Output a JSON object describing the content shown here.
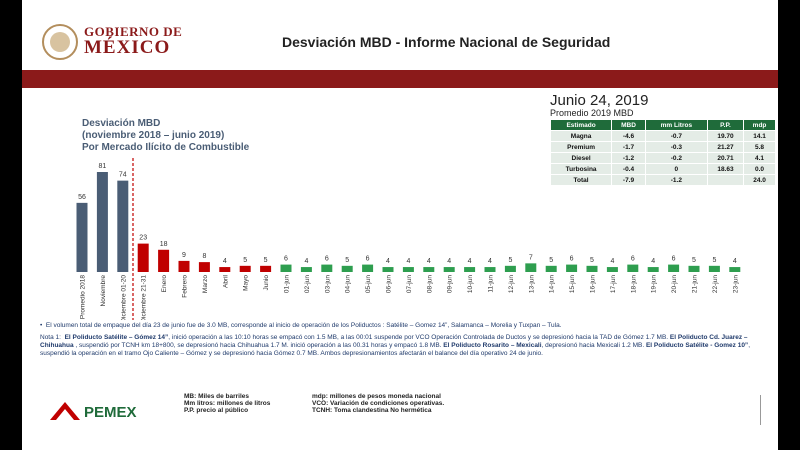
{
  "header": {
    "logo_line1": "GOBIERNO DE",
    "logo_line2": "MÉXICO",
    "title": "Desviación MBD - Informe Nacional de Seguridad"
  },
  "chart_data": {
    "type": "bar",
    "title_lines": [
      "Desviación MBD",
      "(noviembre 2018 – junio 2019)",
      "Por Mercado Ilícito de Combustible"
    ],
    "categories": [
      "Promedio 2018",
      "Noviembre",
      "Diciembre 01-20",
      "Diciembre 21-31",
      "Enero",
      "Febrero",
      "Marzo",
      "Abril",
      "Mayo",
      "Junio",
      "01-jun",
      "02-jun",
      "03-jun",
      "04-jun",
      "05-jun",
      "06-jun",
      "07-jun",
      "08-jun",
      "09-jun",
      "10-jun",
      "11-jun",
      "12-jun",
      "13-jun",
      "14-jun",
      "15-jun",
      "16-jun",
      "17-jun",
      "18-jun",
      "19-jun",
      "20-jun",
      "21-jun",
      "22-jun",
      "23-jun"
    ],
    "values": [
      56,
      81,
      74,
      23,
      18,
      9,
      8,
      4,
      5,
      5,
      6,
      4,
      6,
      5,
      6,
      4,
      4,
      4,
      4,
      4,
      4,
      5,
      7,
      5,
      6,
      5,
      4,
      6,
      4,
      6,
      5,
      5,
      4
    ],
    "colors": [
      "#4a5d75",
      "#4a5d75",
      "#4a5d75",
      "#c00000",
      "#c00000",
      "#c00000",
      "#c00000",
      "#c00000",
      "#c00000",
      "#c00000",
      "#2e9e4f",
      "#2e9e4f",
      "#2e9e4f",
      "#2e9e4f",
      "#2e9e4f",
      "#2e9e4f",
      "#2e9e4f",
      "#2e9e4f",
      "#2e9e4f",
      "#2e9e4f",
      "#2e9e4f",
      "#2e9e4f",
      "#2e9e4f",
      "#2e9e4f",
      "#2e9e4f",
      "#2e9e4f",
      "#2e9e4f",
      "#2e9e4f",
      "#2e9e4f",
      "#2e9e4f",
      "#2e9e4f",
      "#2e9e4f",
      "#2e9e4f"
    ]
  },
  "summary": {
    "date": "Junio 24, 2019",
    "subtitle": "Promedio 2019 MBD",
    "table": {
      "columns": [
        "Estimado",
        "MBD",
        "mm Litros",
        "P.P.",
        "mdp"
      ],
      "rows": [
        [
          "Magna",
          "-4.6",
          "-0.7",
          "19.70",
          "14.1"
        ],
        [
          "Premium",
          "-1.7",
          "-0.3",
          "21.27",
          "5.8"
        ],
        [
          "Diesel",
          "-1.2",
          "-0.2",
          "20.71",
          "4.1"
        ],
        [
          "Turbosina",
          "-0.4",
          "0",
          "18.63",
          "0.0"
        ],
        [
          "Total",
          "-7.9",
          "-1.2",
          null,
          "24.0"
        ]
      ]
    }
  },
  "notes": {
    "bullet": "El volumen total de empaque del día 23 de junio fue de 3.0 MB, corresponde al inicio de operación de los Poliductos : Satélite – Gomez 14”, Salamanca – Morelia y Tuxpan – Tula.",
    "note1": {
      "label": "Nota 1:",
      "parts": [
        {
          "text": "El Poliducto Satélite – Gómez 14”",
          "bold": true
        },
        {
          "text": ", inició operación a las 10:10 horas se empacó con 1.5 MB, a las 00:01 suspende por VCO Operación Controlada de Ductos y se depresionó hacia la TAD de Gómez 1.7 MB. ",
          "bold": false
        },
        {
          "text": "El Poliducto Cd. Juarez – Chihuahua",
          "bold": true
        },
        {
          "text": " , suspendió por TCNH km 18+800, se depresionó hacia Chihuahua 1.7 M. inició operación a las 00.31 horas y empacó 1.8 MB. ",
          "bold": false
        },
        {
          "text": "El Poliducto Rosarito – Mexicali",
          "bold": true
        },
        {
          "text": ", depresionó hacia Mexicali 1.2 MB. ",
          "bold": false
        },
        {
          "text": "El Poliducto Satélite - Gomez 10”",
          "bold": true
        },
        {
          "text": ", suspendió la operación en el tramo Ojo Caliente – Gómez y se depresionó hacia Gómez 0.7 MB. Ambos depresionamientos afectarán el balance del día operativo 24 de junio.",
          "bold": false
        }
      ]
    }
  },
  "footer": {
    "logo": "PEMEX",
    "glossary_left": [
      "MB: Miles de barriles",
      "Mm litros: millones de litros",
      "P.P. precio al público"
    ],
    "glossary_right": [
      "mdp: millones de pesos moneda nacional",
      "VCO: Variación de condiciones operativas.",
      "TCNH: Toma clandestina No hermética"
    ]
  }
}
